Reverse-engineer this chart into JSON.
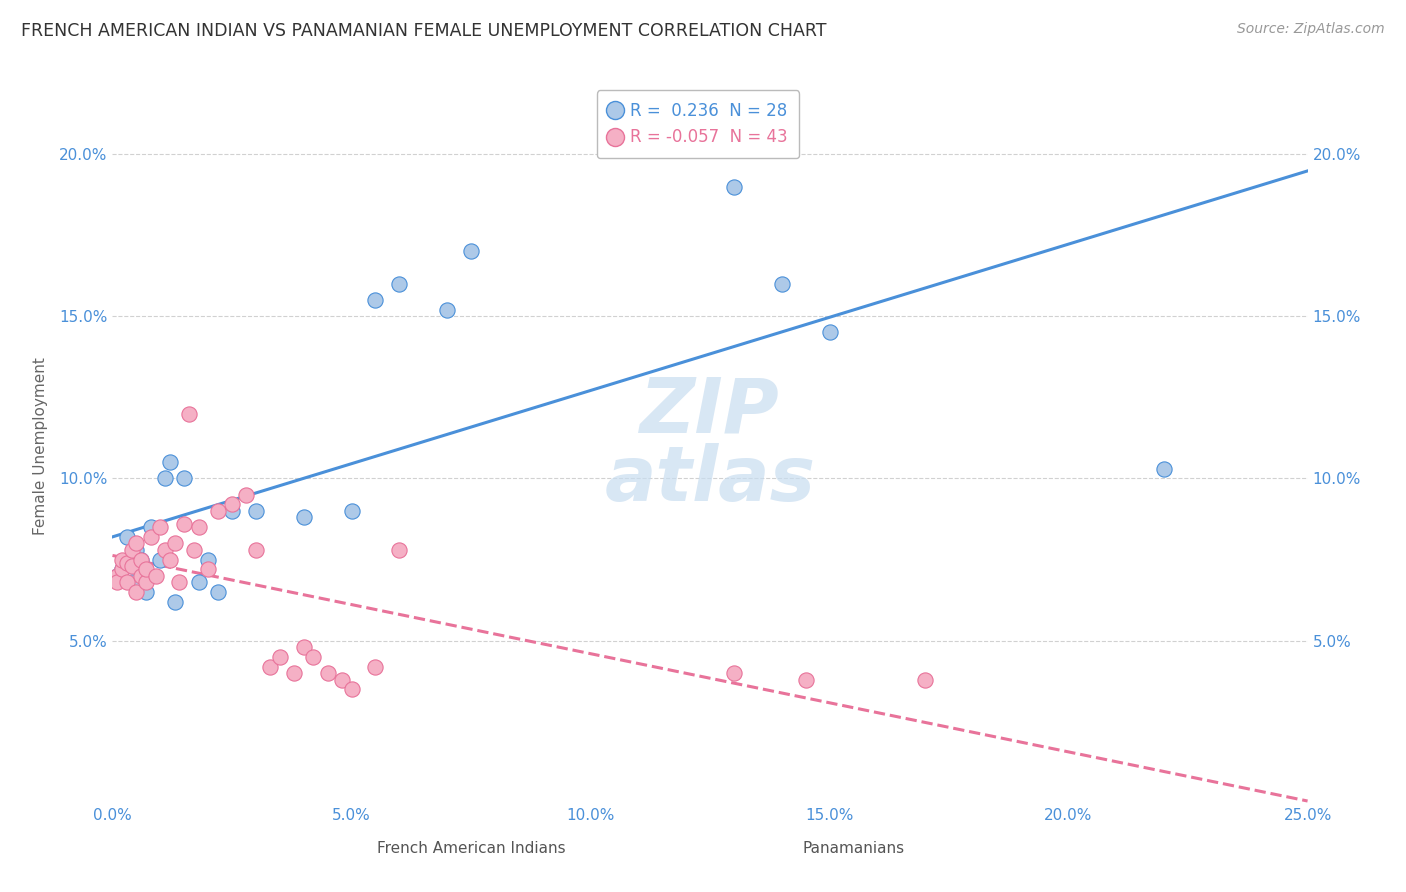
{
  "title": "FRENCH AMERICAN INDIAN VS PANAMANIAN FEMALE UNEMPLOYMENT CORRELATION CHART",
  "source": "Source: ZipAtlas.com",
  "xlabel_french": "French American Indians",
  "xlabel_panamanian": "Panamanians",
  "ylabel": "Female Unemployment",
  "xlim": [
    0.0,
    0.25
  ],
  "ylim": [
    0.0,
    0.22
  ],
  "xticks": [
    0.0,
    0.05,
    0.1,
    0.15,
    0.2,
    0.25
  ],
  "xtick_labels": [
    "0.0%",
    "5.0%",
    "10.0%",
    "15.0%",
    "20.0%",
    "25.0%"
  ],
  "ytick_labels": [
    "5.0%",
    "10.0%",
    "15.0%",
    "20.0%"
  ],
  "ytick_positions": [
    0.05,
    0.1,
    0.15,
    0.2
  ],
  "french_R": 0.236,
  "french_N": 28,
  "panamanian_R": -0.057,
  "panamanian_N": 43,
  "french_color": "#adc9e8",
  "panamanian_color": "#f5b0c5",
  "french_line_color": "#4a90d9",
  "panamanian_line_color": "#e8739a",
  "watermark_color": "#c8ddf0",
  "french_x": [
    0.001,
    0.002,
    0.003,
    0.004,
    0.005,
    0.006,
    0.007,
    0.008,
    0.01,
    0.011,
    0.012,
    0.013,
    0.015,
    0.018,
    0.02,
    0.022,
    0.025,
    0.03,
    0.04,
    0.05,
    0.055,
    0.06,
    0.07,
    0.075,
    0.13,
    0.14,
    0.15,
    0.22
  ],
  "french_y": [
    0.07,
    0.072,
    0.082,
    0.068,
    0.078,
    0.075,
    0.065,
    0.085,
    0.075,
    0.1,
    0.105,
    0.062,
    0.1,
    0.068,
    0.075,
    0.065,
    0.09,
    0.09,
    0.088,
    0.09,
    0.155,
    0.16,
    0.152,
    0.17,
    0.19,
    0.16,
    0.145,
    0.103
  ],
  "panamanian_x": [
    0.001,
    0.001,
    0.002,
    0.002,
    0.003,
    0.003,
    0.004,
    0.004,
    0.005,
    0.005,
    0.006,
    0.006,
    0.007,
    0.007,
    0.008,
    0.009,
    0.01,
    0.011,
    0.012,
    0.013,
    0.014,
    0.015,
    0.016,
    0.017,
    0.018,
    0.02,
    0.022,
    0.025,
    0.028,
    0.03,
    0.033,
    0.035,
    0.038,
    0.04,
    0.042,
    0.045,
    0.048,
    0.05,
    0.055,
    0.06,
    0.13,
    0.145,
    0.17
  ],
  "panamanian_y": [
    0.07,
    0.068,
    0.072,
    0.075,
    0.068,
    0.074,
    0.073,
    0.078,
    0.065,
    0.08,
    0.07,
    0.075,
    0.068,
    0.072,
    0.082,
    0.07,
    0.085,
    0.078,
    0.075,
    0.08,
    0.068,
    0.086,
    0.12,
    0.078,
    0.085,
    0.072,
    0.09,
    0.092,
    0.095,
    0.078,
    0.042,
    0.045,
    0.04,
    0.048,
    0.045,
    0.04,
    0.038,
    0.035,
    0.042,
    0.078,
    0.04,
    0.038,
    0.038
  ]
}
